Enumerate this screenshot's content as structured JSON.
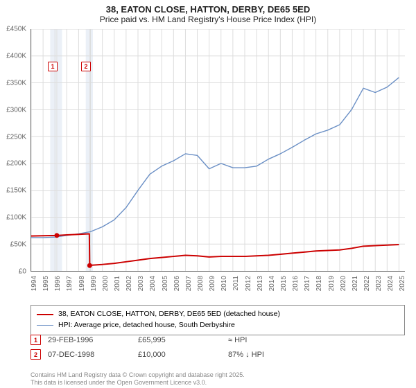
{
  "title": {
    "line1": "38, EATON CLOSE, HATTON, DERBY, DE65 5ED",
    "line2": "Price paid vs. HM Land Registry's House Price Index (HPI)"
  },
  "chart": {
    "type": "line",
    "x_years": [
      1994,
      1995,
      1996,
      1997,
      1998,
      1999,
      2000,
      2001,
      2002,
      2003,
      2004,
      2005,
      2006,
      2007,
      2008,
      2009,
      2010,
      2011,
      2012,
      2013,
      2014,
      2015,
      2016,
      2017,
      2018,
      2019,
      2020,
      2021,
      2022,
      2023,
      2024,
      2025
    ],
    "xlim": [
      1994,
      2025.5
    ],
    "ylim": [
      0,
      450000
    ],
    "ytick_step": 50000,
    "yticks": [
      "£0",
      "£50K",
      "£100K",
      "£150K",
      "£200K",
      "£250K",
      "£300K",
      "£350K",
      "£400K",
      "£450K"
    ],
    "grid_color": "#dcdcdc",
    "axis_color": "#666666",
    "background_color": "#ffffff",
    "band_1996": {
      "from": 1995.6,
      "to": 1996.6,
      "color": "#ebf0f7"
    },
    "band_1998_1999": {
      "from": 1998.6,
      "to": 1999.2,
      "color": "#ebf0f7"
    },
    "vline_1996": {
      "x": 1996.16,
      "color": "#e0e0e0"
    },
    "vline_1998": {
      "x": 1998.93,
      "color": "#e0e0e0"
    },
    "series_price": {
      "label": "38, EATON CLOSE, HATTON, DERBY, DE65 5ED (detached house)",
      "color": "#cc0000",
      "width": 2,
      "points": [
        [
          1994,
          65000
        ],
        [
          1995,
          65500
        ],
        [
          1996.16,
          65995
        ],
        [
          1997,
          67000
        ],
        [
          1998,
          68000
        ],
        [
          1998.9,
          69000
        ],
        [
          1998.93,
          10000
        ],
        [
          1999,
          10500
        ],
        [
          2000,
          12000
        ],
        [
          2001,
          14000
        ],
        [
          2002,
          17000
        ],
        [
          2003,
          20000
        ],
        [
          2004,
          23000
        ],
        [
          2005,
          25000
        ],
        [
          2006,
          27000
        ],
        [
          2007,
          29000
        ],
        [
          2008,
          28000
        ],
        [
          2009,
          26000
        ],
        [
          2010,
          27000
        ],
        [
          2011,
          27000
        ],
        [
          2012,
          27000
        ],
        [
          2013,
          28000
        ],
        [
          2014,
          29000
        ],
        [
          2015,
          31000
        ],
        [
          2016,
          33000
        ],
        [
          2017,
          35000
        ],
        [
          2018,
          37000
        ],
        [
          2019,
          38000
        ],
        [
          2020,
          39000
        ],
        [
          2021,
          42000
        ],
        [
          2022,
          46000
        ],
        [
          2023,
          47000
        ],
        [
          2024,
          48000
        ],
        [
          2025,
          49000
        ]
      ],
      "markers": [
        {
          "num": "1",
          "x": 1996.16,
          "y": 65995,
          "badge_x": 1995.4,
          "badge_y": 390000
        },
        {
          "num": "2",
          "x": 1998.93,
          "y": 10000,
          "badge_x": 1998.2,
          "badge_y": 390000
        }
      ]
    },
    "series_hpi": {
      "label": "HPI: Average price, detached house, South Derbyshire",
      "color": "#6a8fc5",
      "width": 1.4,
      "points": [
        [
          1994,
          62000
        ],
        [
          1995,
          62000
        ],
        [
          1996,
          63000
        ],
        [
          1997,
          66000
        ],
        [
          1998,
          69000
        ],
        [
          1999,
          73000
        ],
        [
          2000,
          82000
        ],
        [
          2001,
          95000
        ],
        [
          2002,
          118000
        ],
        [
          2003,
          150000
        ],
        [
          2004,
          180000
        ],
        [
          2005,
          195000
        ],
        [
          2006,
          205000
        ],
        [
          2007,
          218000
        ],
        [
          2008,
          215000
        ],
        [
          2009,
          190000
        ],
        [
          2010,
          200000
        ],
        [
          2011,
          192000
        ],
        [
          2012,
          192000
        ],
        [
          2013,
          195000
        ],
        [
          2014,
          208000
        ],
        [
          2015,
          218000
        ],
        [
          2016,
          230000
        ],
        [
          2017,
          243000
        ],
        [
          2018,
          255000
        ],
        [
          2019,
          262000
        ],
        [
          2020,
          272000
        ],
        [
          2021,
          300000
        ],
        [
          2022,
          340000
        ],
        [
          2023,
          332000
        ],
        [
          2024,
          342000
        ],
        [
          2025,
          360000
        ]
      ]
    }
  },
  "legend": {
    "rows": [
      {
        "color": "#cc0000",
        "width": 2,
        "label": "38, EATON CLOSE, HATTON, DERBY, DE65 5ED (detached house)"
      },
      {
        "color": "#6a8fc5",
        "width": 1.4,
        "label": "HPI: Average price, detached house, South Derbyshire"
      }
    ]
  },
  "data_table": {
    "rows": [
      {
        "num": "1",
        "color": "#cc0000",
        "date": "29-FEB-1996",
        "price": "£65,995",
        "delta": "≈ HPI"
      },
      {
        "num": "2",
        "color": "#cc0000",
        "date": "07-DEC-1998",
        "price": "£10,000",
        "delta": "87% ↓ HPI"
      }
    ]
  },
  "footer": {
    "line1": "Contains HM Land Registry data © Crown copyright and database right 2025.",
    "line2": "This data is licensed under the Open Government Licence v3.0."
  }
}
